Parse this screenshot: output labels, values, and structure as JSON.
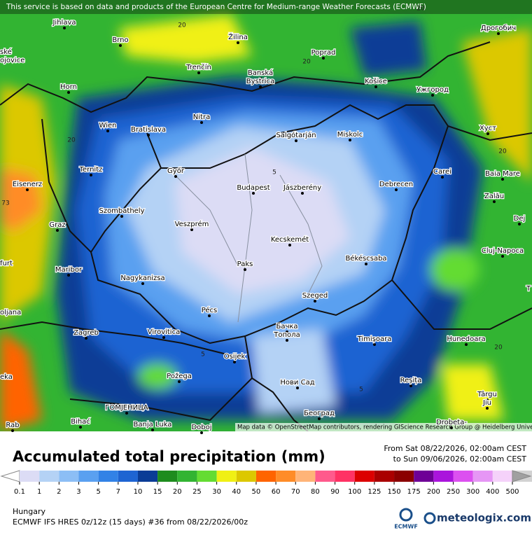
{
  "header": {
    "notice": "This service is based on data and products of the European Centre for Medium-range Weather Forecasts (ECMWF)"
  },
  "map": {
    "cities": [
      "Jihlava",
      "Brno",
      "Žilina",
      "Poprad",
      "Дрогобич",
      "ské",
      "ojovice",
      "Trenčín",
      "Banská",
      "Bystrica",
      "Košice",
      "Ужгород",
      "Horn",
      "Nitra",
      "Wien",
      "Bratislava",
      "Salgótarján",
      "Miskolc",
      "Хуст",
      "Ternitz",
      "Győr",
      "Budapest",
      "Jászberény",
      "Debrecen",
      "Carei",
      "Baia Mare",
      "Eisenerz",
      "Szombathely",
      "Zalău",
      "Graz",
      "Veszprém",
      "Dej",
      "Kecskemét",
      "Cluj-Napoca",
      "Maribor",
      "Paks",
      "Békéscsaba",
      "furt",
      "Nagykanizsa",
      "Szeged",
      "oljana",
      "T",
      "Pécs",
      "Zagreb",
      "Virovitica",
      "Бачка",
      "Топола",
      "Timișoara",
      "Hunedoara",
      "Osijek",
      "eka",
      "Požega",
      "Нови Сад",
      "Reșița",
      "Târgu",
      "Jiu",
      "ГОМЈЕНИЦА",
      "Bihać",
      "Banja Luka",
      "Doboj",
      "Београд",
      "Drobeta-",
      "Rab"
    ],
    "contour_labels": [
      "20",
      "20",
      "20",
      "20",
      "20",
      "20",
      "5",
      "5",
      "5",
      "73"
    ],
    "attribution": "Map data © OpenStreetMap contributors, rendering GIScience Research Group @ Heidelberg University"
  },
  "legend": {
    "title": "Accumulated total precipitation (mm)",
    "period": [
      "From Sat 08/22/2026, 02:00am CEST",
      "to Sun 09/06/2026, 02:00am CEST"
    ],
    "region": "Hungary",
    "model": "ECMWF IFS HRES 0z/12z (15 days) #36 from  08/22/2026/00z",
    "logos": [
      "ECMWF",
      "meteologix.com"
    ],
    "colorbar": {
      "labels": [
        0.1,
        1,
        2,
        3,
        5,
        7,
        10,
        15,
        20,
        25,
        30,
        40,
        50,
        60,
        70,
        80,
        90,
        100,
        125,
        150,
        175,
        200,
        250,
        300,
        400,
        500
      ],
      "colors": [
        "#ffffff",
        "#dcdcf5",
        "#b4d2f5",
        "#8cbef5",
        "#5aa0f0",
        "#3282e6",
        "#1e64d2",
        "#0a3c96",
        "#1e8c1e",
        "#32b432",
        "#64dc32",
        "#f0f014",
        "#dcc800",
        "#ff6400",
        "#ff8c28",
        "#ffb478",
        "#ff5a8c",
        "#ff3264",
        "#dc0000",
        "#aa0000",
        "#8b0000",
        "#6e0096",
        "#aa14dc",
        "#dc50f0",
        "#e696f5",
        "#f5d2fa",
        "#d2d2d2",
        "#a0a0a0"
      ]
    }
  }
}
